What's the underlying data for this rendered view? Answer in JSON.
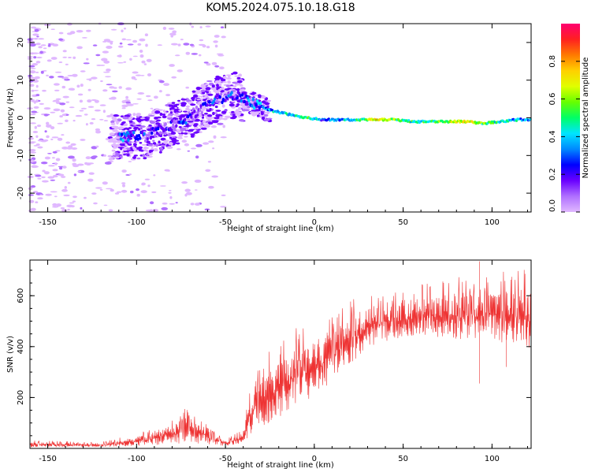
{
  "figure": {
    "title": "KOM5.2024.075.10.18.G18"
  },
  "chart_data": [
    {
      "type": "heatmap",
      "xlabel": "Height of straight line (km)",
      "ylabel": "Frequency (Hz)",
      "xlim": [
        -160,
        122
      ],
      "ylim": [
        -25,
        25
      ],
      "x_ticks": [
        -150,
        -100,
        -50,
        0,
        50,
        100
      ],
      "y_ticks": [
        -20,
        -10,
        0,
        10,
        20
      ],
      "colorbar": {
        "label": "Normalized spectral amplitude",
        "range": [
          0,
          1
        ],
        "ticks": [
          "0.0",
          "0.2",
          "0.4",
          "0.6",
          "0.8"
        ],
        "tick_values": [
          0.0,
          0.2,
          0.4,
          0.6,
          0.8
        ],
        "colors": [
          "#e0b8ff",
          "#b070ff",
          "#6a00ff",
          "#0000ff",
          "#0088ff",
          "#00e5ff",
          "#00ff66",
          "#66ff00",
          "#e0ff00",
          "#ffd000",
          "#ff7a00",
          "#ff2020",
          "#ff0070"
        ]
      },
      "ridge": [
        {
          "x": -105,
          "f": -5,
          "a": 0.3
        },
        {
          "x": -95,
          "f": -5,
          "a": 0.2
        },
        {
          "x": -85,
          "f": -3,
          "a": 0.15
        },
        {
          "x": -75,
          "f": -1,
          "a": 0.2
        },
        {
          "x": -65,
          "f": 2,
          "a": 0.15
        },
        {
          "x": -55,
          "f": 5,
          "a": 0.2
        },
        {
          "x": -45,
          "f": 6,
          "a": 0.2
        },
        {
          "x": -35,
          "f": 4,
          "a": 0.3
        },
        {
          "x": -25,
          "f": 2,
          "a": 0.35
        },
        {
          "x": -15,
          "f": 1,
          "a": 0.45
        },
        {
          "x": -5,
          "f": 0,
          "a": 0.5
        },
        {
          "x": 5,
          "f": -0.5,
          "a": 0.3
        },
        {
          "x": 15,
          "f": -0.5,
          "a": 0.35
        },
        {
          "x": 25,
          "f": -0.5,
          "a": 0.45
        },
        {
          "x": 35,
          "f": -0.5,
          "a": 0.7
        },
        {
          "x": 45,
          "f": -0.5,
          "a": 0.55
        },
        {
          "x": 55,
          "f": -1,
          "a": 0.45
        },
        {
          "x": 65,
          "f": -1,
          "a": 0.5
        },
        {
          "x": 75,
          "f": -1,
          "a": 0.6
        },
        {
          "x": 85,
          "f": -1,
          "a": 0.7
        },
        {
          "x": 95,
          "f": -1.5,
          "a": 0.55
        },
        {
          "x": 105,
          "f": -1,
          "a": 0.4
        },
        {
          "x": 115,
          "f": -0.5,
          "a": 0.35
        }
      ]
    },
    {
      "type": "line",
      "xlabel": "Height of straight line (km)",
      "ylabel": "SNR (v/v)",
      "xlim": [
        -160,
        122
      ],
      "ylim": [
        0,
        740
      ],
      "x_ticks": [
        -150,
        -100,
        -50,
        0,
        50,
        100
      ],
      "y_ticks": [
        200,
        400,
        600
      ],
      "color": "#ee3333",
      "envelope": [
        {
          "x": -160,
          "lo": 5,
          "hi": 25
        },
        {
          "x": -120,
          "lo": 5,
          "hi": 20
        },
        {
          "x": -100,
          "lo": 10,
          "hi": 45
        },
        {
          "x": -85,
          "lo": 15,
          "hi": 80
        },
        {
          "x": -70,
          "lo": 20,
          "hi": 130
        },
        {
          "x": -60,
          "lo": 15,
          "hi": 80
        },
        {
          "x": -50,
          "lo": 10,
          "hi": 30
        },
        {
          "x": -40,
          "lo": 20,
          "hi": 60
        },
        {
          "x": -35,
          "lo": 60,
          "hi": 250
        },
        {
          "x": -28,
          "lo": 90,
          "hi": 300
        },
        {
          "x": -20,
          "lo": 120,
          "hi": 330
        },
        {
          "x": -10,
          "lo": 160,
          "hi": 400
        },
        {
          "x": 0,
          "lo": 210,
          "hi": 420
        },
        {
          "x": 10,
          "lo": 260,
          "hi": 460
        },
        {
          "x": 20,
          "lo": 330,
          "hi": 520
        },
        {
          "x": 30,
          "lo": 400,
          "hi": 560
        },
        {
          "x": 45,
          "lo": 430,
          "hi": 580
        },
        {
          "x": 60,
          "lo": 440,
          "hi": 600
        },
        {
          "x": 80,
          "lo": 430,
          "hi": 610
        },
        {
          "x": 100,
          "lo": 420,
          "hi": 620
        },
        {
          "x": 122,
          "lo": 390,
          "hi": 630
        }
      ],
      "spikes": [
        {
          "x": 93,
          "lo": 255,
          "hi": 735
        },
        {
          "x": 108,
          "lo": 320,
          "hi": 560
        }
      ]
    }
  ]
}
